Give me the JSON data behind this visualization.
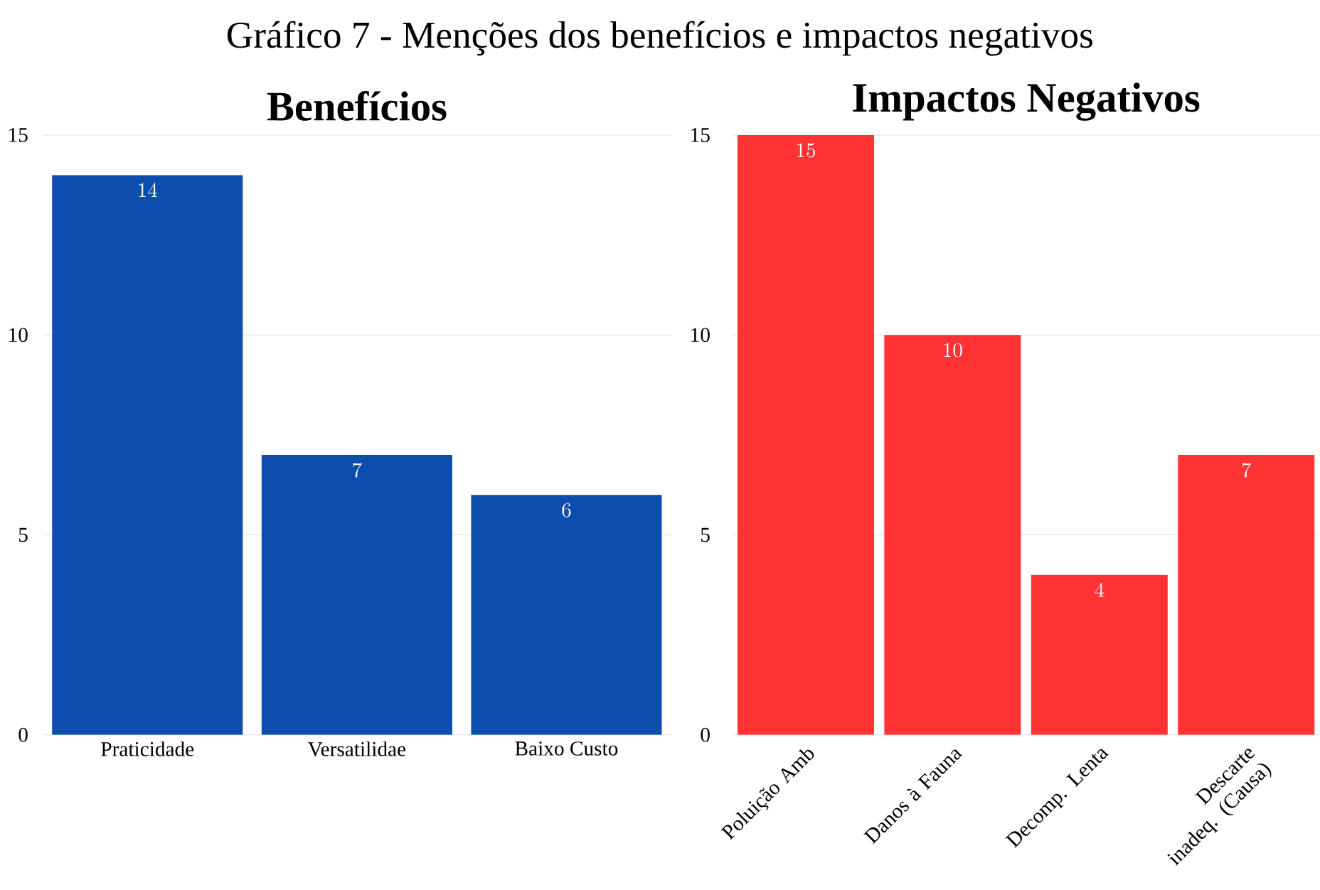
{
  "chart_data": [
    {
      "type": "bar",
      "title": "Benefícios",
      "annotations": [
        "Gráfico 7 - Menções dos benefícios e impactos negativos"
      ],
      "categories": [
        "Praticidade",
        "Versatilidae",
        "Baixo Custo"
      ],
      "values": [
        14,
        7,
        6
      ],
      "color": "#0b4eae",
      "ylim": [
        0,
        15
      ],
      "yticks": [
        0,
        5,
        10,
        15
      ],
      "grid": "y",
      "data_labels": true
    },
    {
      "type": "bar",
      "title": "Impactos Negativos",
      "categories": [
        "Poluição Amb",
        "Danos à Fauna",
        "Decomp. Lenta",
        "Descarte inadeq. (Causa)"
      ],
      "values": [
        15,
        10,
        4,
        7
      ],
      "color": "#ff3333",
      "ylim": [
        0,
        15
      ],
      "yticks": [
        0,
        5,
        10,
        15
      ],
      "grid": "y",
      "data_labels": true
    }
  ]
}
